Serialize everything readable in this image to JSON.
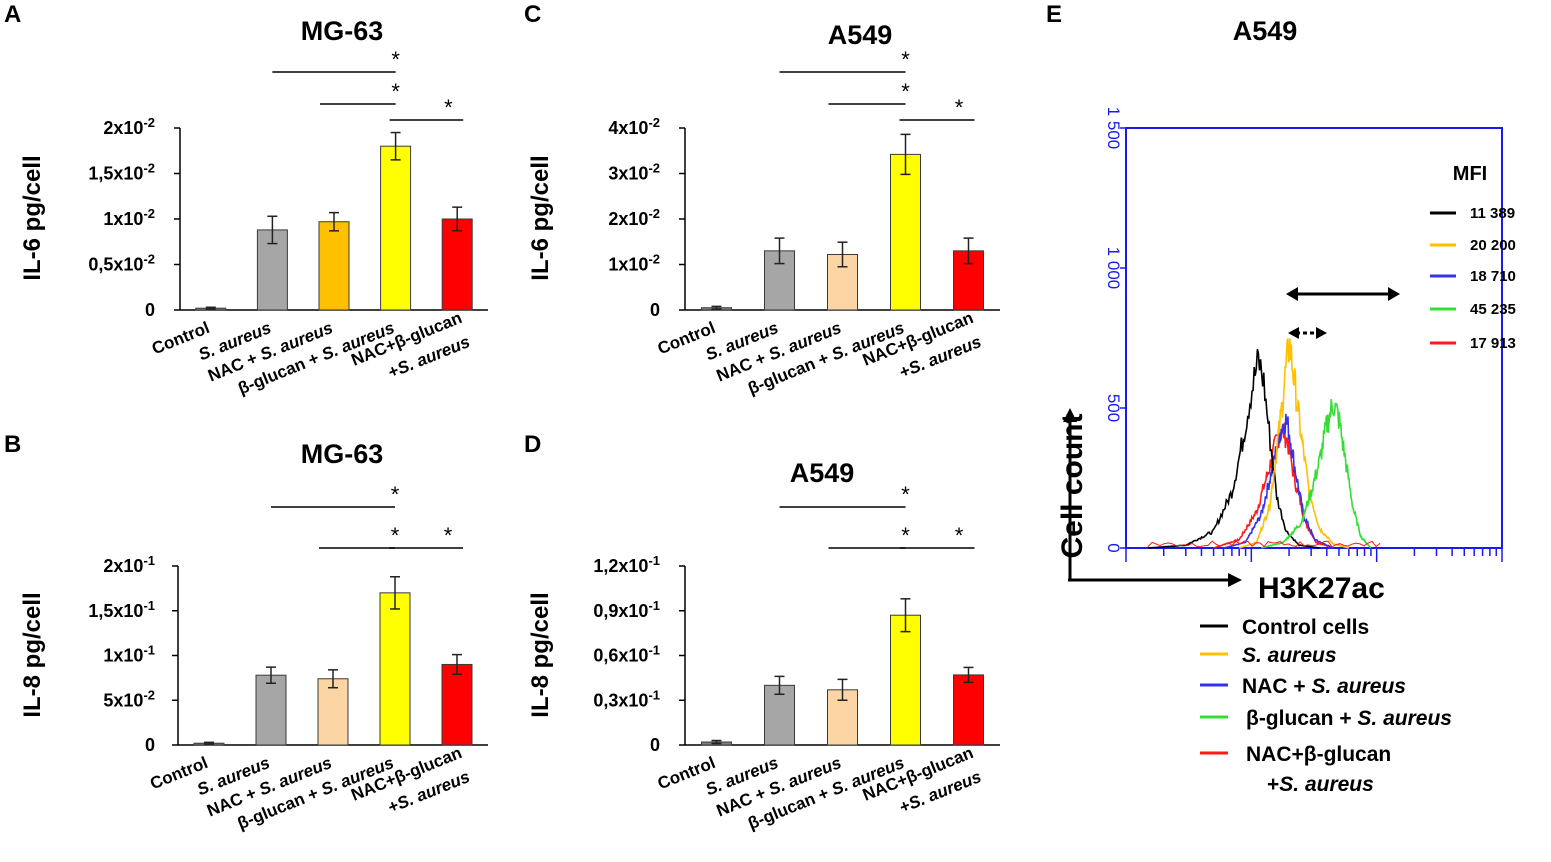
{
  "panels": [
    {
      "letter": "A",
      "title": "MG-63",
      "ylabel": "IL-6 pg/cell",
      "type": "bar",
      "categories": [
        "Control",
        "S. aureus",
        "NAC + S. aureus",
        "β-glucan + S. aureus",
        "NAC+β-glucan",
        "+S. aureus"
      ],
      "bars": [
        {
          "category": "Control",
          "value": 0.0002,
          "error": 0.0001,
          "color": "#808080"
        },
        {
          "category": "S. aureus",
          "value": 0.0088,
          "error": 0.0015,
          "color": "#a6a6a6"
        },
        {
          "category": "NAC + S. aureus",
          "value": 0.0097,
          "error": 0.001,
          "color": "#ffc000"
        },
        {
          "category": "β-glucan + S. aureus",
          "value": 0.018,
          "error": 0.0015,
          "color": "#ffff00"
        },
        {
          "category": "NAC+β-glucan +S. aureus",
          "value": 0.01,
          "error": 0.0013,
          "color": "#ff0000"
        }
      ],
      "ylim": [
        0,
        0.02
      ],
      "yticks": [
        {
          "value": 0,
          "label": "0"
        },
        {
          "value": 0.005,
          "label": "0,5x10-2"
        },
        {
          "value": 0.01,
          "label": "1x10-2"
        },
        {
          "value": 0.015,
          "label": "1,5x10-2"
        },
        {
          "value": 0.02,
          "label": "2x10-2"
        }
      ],
      "significance": [
        {
          "from": 1,
          "to": 3,
          "level": 2,
          "label": "*"
        },
        {
          "from": 2,
          "to": 3,
          "level": 1,
          "label": "*"
        },
        {
          "from": 3,
          "to": 4,
          "level": 0,
          "label": "*"
        }
      ]
    },
    {
      "letter": "B",
      "title": "MG-63",
      "ylabel": "IL-8 pg/cell",
      "type": "bar",
      "categories": [
        "Control",
        "S. aureus",
        "NAC + S. aureus",
        "β-glucan + S. aureus",
        "NAC+β-glucan",
        "+S. aureus"
      ],
      "bars": [
        {
          "category": "Control",
          "value": 0.002,
          "error": 0.001,
          "color": "#808080"
        },
        {
          "category": "S. aureus",
          "value": 0.078,
          "error": 0.009,
          "color": "#a6a6a6"
        },
        {
          "category": "NAC + S. aureus",
          "value": 0.074,
          "error": 0.01,
          "color": "#fbd5a3"
        },
        {
          "category": "β-glucan + S. aureus",
          "value": 0.17,
          "error": 0.018,
          "color": "#ffff00"
        },
        {
          "category": "NAC+β-glucan +S. aureus",
          "value": 0.09,
          "error": 0.011,
          "color": "#ff0000"
        }
      ],
      "ylim": [
        0,
        0.2
      ],
      "yticks": [
        {
          "value": 0,
          "label": "0"
        },
        {
          "value": 0.05,
          "label": "5x10-2"
        },
        {
          "value": 0.1,
          "label": "1x10-1"
        },
        {
          "value": 0.15,
          "label": "1,5x10-1"
        },
        {
          "value": 0.2,
          "label": "2x10-1"
        }
      ],
      "significance": [
        {
          "from": 1,
          "to": 3,
          "level": 2,
          "label": "*"
        },
        {
          "from": 2,
          "to": 3,
          "level": 1,
          "label": "*"
        },
        {
          "from": 3,
          "to": 4,
          "level": 1,
          "label": "*"
        }
      ]
    },
    {
      "letter": "C",
      "title": "A549",
      "ylabel": "IL-6 pg/cell",
      "type": "bar",
      "categories": [
        "Control",
        "S. aureus",
        "NAC + S. aureus",
        "β-glucan + S. aureus",
        "NAC+β-glucan",
        "+S. aureus"
      ],
      "bars": [
        {
          "category": "Control",
          "value": 0.0005,
          "error": 0.0003,
          "color": "#808080"
        },
        {
          "category": "S. aureus",
          "value": 0.013,
          "error": 0.0028,
          "color": "#a6a6a6"
        },
        {
          "category": "NAC + S. aureus",
          "value": 0.0122,
          "error": 0.0027,
          "color": "#fbd5a3"
        },
        {
          "category": "β-glucan + S. aureus",
          "value": 0.0342,
          "error": 0.0044,
          "color": "#ffff00"
        },
        {
          "category": "NAC+β-glucan +S. aureus",
          "value": 0.013,
          "error": 0.0028,
          "color": "#ff0000"
        }
      ],
      "ylim": [
        0,
        0.04
      ],
      "yticks": [
        {
          "value": 0,
          "label": "0"
        },
        {
          "value": 0.01,
          "label": "1x10-2"
        },
        {
          "value": 0.02,
          "label": "2x10-2"
        },
        {
          "value": 0.03,
          "label": "3x10-2"
        },
        {
          "value": 0.04,
          "label": "4x10-2"
        }
      ],
      "significance": [
        {
          "from": 1,
          "to": 3,
          "level": 2,
          "label": "*"
        },
        {
          "from": 2,
          "to": 3,
          "level": 1,
          "label": "*"
        },
        {
          "from": 3,
          "to": 4,
          "level": 0,
          "label": "*"
        }
      ]
    },
    {
      "letter": "D",
      "title": "A549",
      "ylabel": "IL-8 pg/cell",
      "type": "bar",
      "categories": [
        "Control",
        "S. aureus",
        "NAC + S. aureus",
        "β-glucan + S. aureus",
        "NAC+β-glucan",
        "+S. aureus"
      ],
      "bars": [
        {
          "category": "Control",
          "value": 0.002,
          "error": 0.001,
          "color": "#808080"
        },
        {
          "category": "S. aureus",
          "value": 0.04,
          "error": 0.006,
          "color": "#a6a6a6"
        },
        {
          "category": "NAC + S. aureus",
          "value": 0.037,
          "error": 0.007,
          "color": "#fbd5a3"
        },
        {
          "category": "β-glucan + S. aureus",
          "value": 0.087,
          "error": 0.011,
          "color": "#ffff00"
        },
        {
          "category": "NAC+β-glucan +S. aureus",
          "value": 0.047,
          "error": 0.005,
          "color": "#ff0000"
        }
      ],
      "ylim": [
        0,
        0.12
      ],
      "yticks": [
        {
          "value": 0,
          "label": "0"
        },
        {
          "value": 0.03,
          "label": "0,3x10-1"
        },
        {
          "value": 0.06,
          "label": "0,6x10-1"
        },
        {
          "value": 0.09,
          "label": "0,9x10-1"
        },
        {
          "value": 0.12,
          "label": "1,2x10-1"
        }
      ],
      "significance": [
        {
          "from": 1,
          "to": 3,
          "level": 2,
          "label": "*"
        },
        {
          "from": 2,
          "to": 3,
          "level": 1,
          "label": "*"
        },
        {
          "from": 3,
          "to": 4,
          "level": 1,
          "label": "*"
        }
      ]
    }
  ],
  "chart_data": {
    "type": "line",
    "letter": "E",
    "title": "A549",
    "xlabel": "H3K27ac",
    "ylabel": "Cell count",
    "xscale": "log",
    "xlim": [
      1000,
      1000000
    ],
    "ylim": [
      0,
      1500
    ],
    "yticks": [
      {
        "value": 0,
        "label": "0"
      },
      {
        "value": 500,
        "label": "500"
      },
      {
        "value": 1000,
        "label": "1 000"
      },
      {
        "value": 1500,
        "label": "1 500"
      }
    ],
    "mfi_header": "MFI",
    "series": [
      {
        "name": "Control cells",
        "mfi": "11 389",
        "color": "#000000",
        "x": [
          1500,
          3000,
          5000,
          7000,
          8500,
          10000,
          11389,
          12500,
          14000,
          16000,
          19000,
          24000,
          35000
        ],
        "y": [
          0,
          10,
          60,
          200,
          380,
          560,
          670,
          600,
          400,
          180,
          60,
          10,
          0
        ]
      },
      {
        "name": "S. aureus",
        "mfi": "20 200",
        "color": "#ffc000",
        "x": [
          8000,
          11000,
          14000,
          17000,
          19000,
          20200,
          22000,
          25000,
          29000,
          35000,
          45000,
          60000
        ],
        "y": [
          0,
          20,
          150,
          450,
          650,
          730,
          600,
          400,
          200,
          70,
          15,
          0
        ]
      },
      {
        "name": "NAC + S. aureus",
        "mfi": "18 710",
        "color": "#3333ee",
        "x": [
          6000,
          9000,
          12000,
          15000,
          17000,
          18710,
          20000,
          22000,
          26000,
          32000,
          45000
        ],
        "y": [
          0,
          20,
          120,
          300,
          420,
          460,
          420,
          300,
          120,
          30,
          0
        ]
      },
      {
        "name": "β-glucan + S. aureus",
        "mfi": "45 235",
        "color": "#33dd33",
        "x": [
          12000,
          18000,
          25000,
          30000,
          35000,
          40000,
          45235,
          50000,
          57000,
          65000,
          75000,
          90000
        ],
        "y": [
          0,
          20,
          90,
          200,
          310,
          440,
          520,
          460,
          300,
          140,
          40,
          0
        ]
      },
      {
        "name": "NAC+β-glucan +S. aureus",
        "mfi": "17 913",
        "color": "#ff1a1a",
        "x": [
          5000,
          8000,
          11000,
          14000,
          16000,
          17913,
          19500,
          22000,
          27000,
          33000,
          45000
        ],
        "y": [
          0,
          30,
          130,
          290,
          390,
          420,
          380,
          250,
          90,
          20,
          0
        ]
      }
    ],
    "legend": [
      {
        "line1": "Control cells",
        "line2": "",
        "italic1": false,
        "color": "#000000"
      },
      {
        "line1": "S. aureus",
        "line2": "",
        "italic1": true,
        "color": "#ffc000"
      },
      {
        "line1": "NAC + S. aureus",
        "line2": "",
        "italic1": false,
        "color": "#3333ee"
      },
      {
        "line1": "β-glucan + S. aureus",
        "line2": "",
        "italic1": false,
        "color": "#33dd33"
      },
      {
        "line1": "NAC+β-glucan",
        "line2": "+S. aureus",
        "italic1": false,
        "color": "#ff1a1a"
      }
    ]
  }
}
